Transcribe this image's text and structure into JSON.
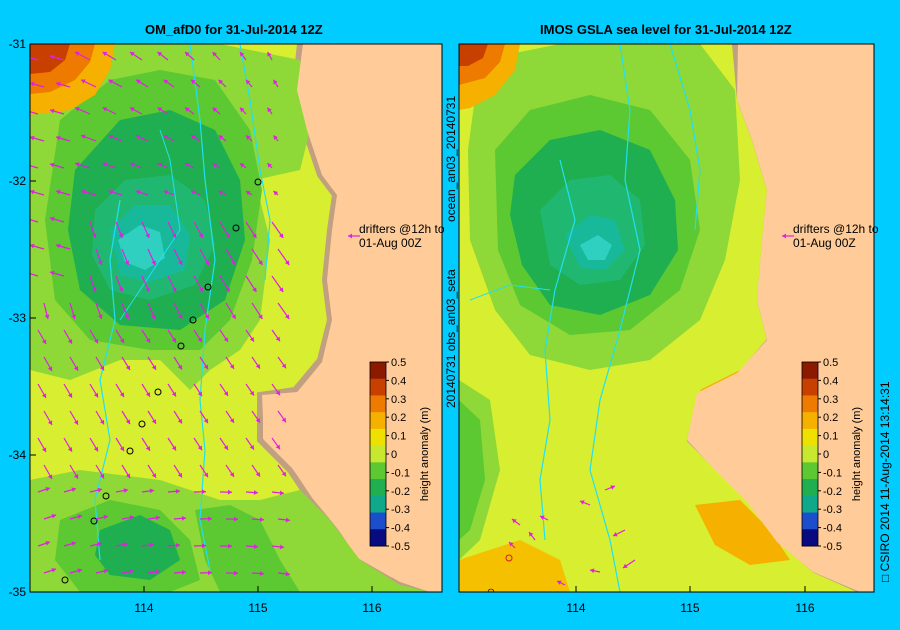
{
  "panels": [
    {
      "title": "OM_afD0 for 31-Jul-2014 12Z",
      "drifter_note_line1": "drifters @12h to",
      "drifter_note_line2": "01-Aug 00Z"
    },
    {
      "title": "IMOS GSLA sea level  for 31-Jul-2014 12Z",
      "drifter_note_line1": "drifters @12h to",
      "drifter_note_line2": "01-Aug 00Z"
    }
  ],
  "y_ticks": [
    "-31",
    "-32",
    "-33",
    "-34",
    "-35"
  ],
  "x_ticks": [
    "114",
    "115",
    "116"
  ],
  "colorbar": {
    "title": "height anomaly (m)",
    "ticks": [
      "0.5",
      "0.4",
      "0.3",
      "0.2",
      "0.1",
      "0",
      "-0.1",
      "-0.2",
      "-0.3",
      "-0.4",
      "-0.5"
    ],
    "colors": [
      "#8b1a00",
      "#c84000",
      "#ee7a00",
      "#f5b000",
      "#eee000",
      "#c8e830",
      "#5cc832",
      "#1fae50",
      "#10a88a",
      "#1a4ecc",
      "#0a0a80"
    ]
  },
  "side_labels": {
    "left_upper": "ocean_an03_20140731",
    "left_lower": "20140731 obs_an03_seta",
    "right": "CSIRO 2014  11-Aug-2014 13:14:31",
    "copyright_icon": "copyright-icon"
  },
  "colors": {
    "background": "#00ccff",
    "land": "#ffcc99",
    "coast": "#c0a080",
    "vectors": "#e020e0"
  }
}
